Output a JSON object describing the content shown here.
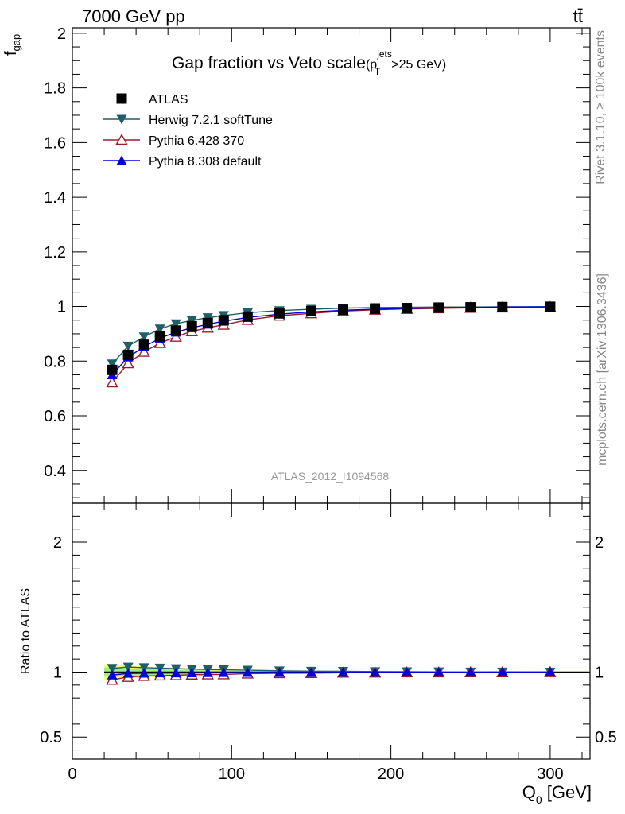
{
  "header": {
    "left": "7000 GeV pp",
    "right": "tt̄"
  },
  "side_labels": {
    "rivet": "Rivet 3.1.10, ≥ 100k events",
    "mcplots": "mcplots.cern.ch [arXiv:1306.3436]"
  },
  "watermark": "ATLAS_2012_I1094568",
  "colors": {
    "atlas": "#000000",
    "herwig": "#1f5f66",
    "pythia6": "#9b1c2c",
    "pythia8": "#0000dd",
    "band_outer": "#ffff66",
    "band_inner": "#99ee88"
  },
  "chart_data": [
    {
      "type": "line",
      "title": "Gap fraction vs Veto scale",
      "title_suffix": {
        "open": "(p",
        "sup": "jets",
        "sub": "T",
        "close": ">25 GeV)"
      },
      "ylabel": {
        "main": "f",
        "sub": "gap"
      },
      "xlabel": {
        "main": "Q",
        "sub": "0",
        "rest": " [GeV]"
      },
      "xlim": [
        0,
        325
      ],
      "ylim": [
        0.28,
        2.02
      ],
      "xticks": [
        0,
        100,
        200,
        300
      ],
      "xtick_labels": [
        "0",
        "100",
        "200",
        "300"
      ],
      "yticks": [
        0.4,
        0.6,
        0.8,
        1.0,
        1.2,
        1.4,
        1.6,
        1.8,
        2.0
      ],
      "ytick_labels": [
        "0.4",
        "0.6",
        "0.8",
        "1",
        "1.2",
        "1.4",
        "1.6",
        "1.8",
        "2"
      ],
      "legend_position": "top-left",
      "x": [
        25,
        35,
        45,
        55,
        65,
        75,
        85,
        95,
        110,
        130,
        150,
        170,
        190,
        210,
        230,
        250,
        270,
        300
      ],
      "series": [
        {
          "name": "ATLAS",
          "key": "atlas",
          "marker": "square",
          "values": [
            0.768,
            0.823,
            0.86,
            0.89,
            0.912,
            0.928,
            0.94,
            0.95,
            0.963,
            0.975,
            0.983,
            0.988,
            0.992,
            0.994,
            0.996,
            0.997,
            0.998,
            0.999
          ]
        },
        {
          "name": "Herwig 7.2.1 softTune",
          "key": "herwig",
          "marker": "triangle-down",
          "values": [
            0.79,
            0.855,
            0.889,
            0.918,
            0.937,
            0.949,
            0.959,
            0.967,
            0.977,
            0.985,
            0.99,
            0.994,
            0.996,
            0.997,
            0.998,
            0.998,
            0.999,
            0.999
          ]
        },
        {
          "name": "Pythia 6.428 370",
          "key": "pythia6",
          "marker": "triangle-open",
          "values": [
            0.722,
            0.792,
            0.834,
            0.866,
            0.889,
            0.909,
            0.922,
            0.933,
            0.951,
            0.966,
            0.975,
            0.983,
            0.988,
            0.991,
            0.993,
            0.995,
            0.996,
            0.998
          ]
        },
        {
          "name": "Pythia 8.308 default",
          "key": "pythia8",
          "marker": "triangle-up",
          "values": [
            0.75,
            0.815,
            0.852,
            0.884,
            0.906,
            0.922,
            0.935,
            0.946,
            0.96,
            0.972,
            0.98,
            0.986,
            0.99,
            0.993,
            0.995,
            0.996,
            0.998,
            0.999
          ]
        }
      ]
    },
    {
      "type": "line",
      "ylabel": "Ratio to ATLAS",
      "xlim": [
        0,
        325
      ],
      "ylim": [
        0.33,
        2.3
      ],
      "yticks": [
        0.5,
        1.0,
        2.0
      ],
      "ytick_labels": [
        "0.5",
        "1",
        "2"
      ],
      "x": [
        25,
        35,
        45,
        55,
        65,
        75,
        85,
        95,
        110,
        130,
        150,
        170,
        190,
        210,
        230,
        250,
        270,
        300
      ],
      "band": {
        "x_range": [
          20,
          325
        ],
        "inner_halfwidth": [
          0.035,
          0.03,
          0.026,
          0.022,
          0.019,
          0.016,
          0.013,
          0.011,
          0.009,
          0.007,
          0.006,
          0.005,
          0.004,
          0.004,
          0.003,
          0.003,
          0.003,
          0.003
        ],
        "outer_halfwidth": [
          0.06,
          0.05,
          0.044,
          0.038,
          0.033,
          0.028,
          0.024,
          0.021,
          0.017,
          0.013,
          0.011,
          0.009,
          0.008,
          0.007,
          0.006,
          0.006,
          0.005,
          0.005
        ]
      },
      "series": [
        {
          "name": "Herwig 7.2.1 softTune",
          "key": "herwig",
          "marker": "triangle-down",
          "values": [
            1.029,
            1.039,
            1.034,
            1.031,
            1.027,
            1.023,
            1.02,
            1.018,
            1.015,
            1.01,
            1.007,
            1.006,
            1.004,
            1.003,
            1.002,
            1.001,
            1.001,
            1.0
          ]
        },
        {
          "name": "Pythia 6.428 370",
          "key": "pythia6",
          "marker": "triangle-open",
          "values": [
            0.94,
            0.962,
            0.97,
            0.973,
            0.975,
            0.98,
            0.981,
            0.982,
            0.988,
            0.991,
            0.992,
            0.995,
            0.996,
            0.997,
            0.997,
            0.998,
            0.998,
            0.999
          ]
        },
        {
          "name": "Pythia 8.308 default",
          "key": "pythia8",
          "marker": "triangle-up",
          "values": [
            0.977,
            0.99,
            0.991,
            0.993,
            0.993,
            0.994,
            0.995,
            0.996,
            0.997,
            0.997,
            0.997,
            0.998,
            0.998,
            0.999,
            0.999,
            0.999,
            1.0,
            1.0
          ]
        }
      ]
    }
  ]
}
